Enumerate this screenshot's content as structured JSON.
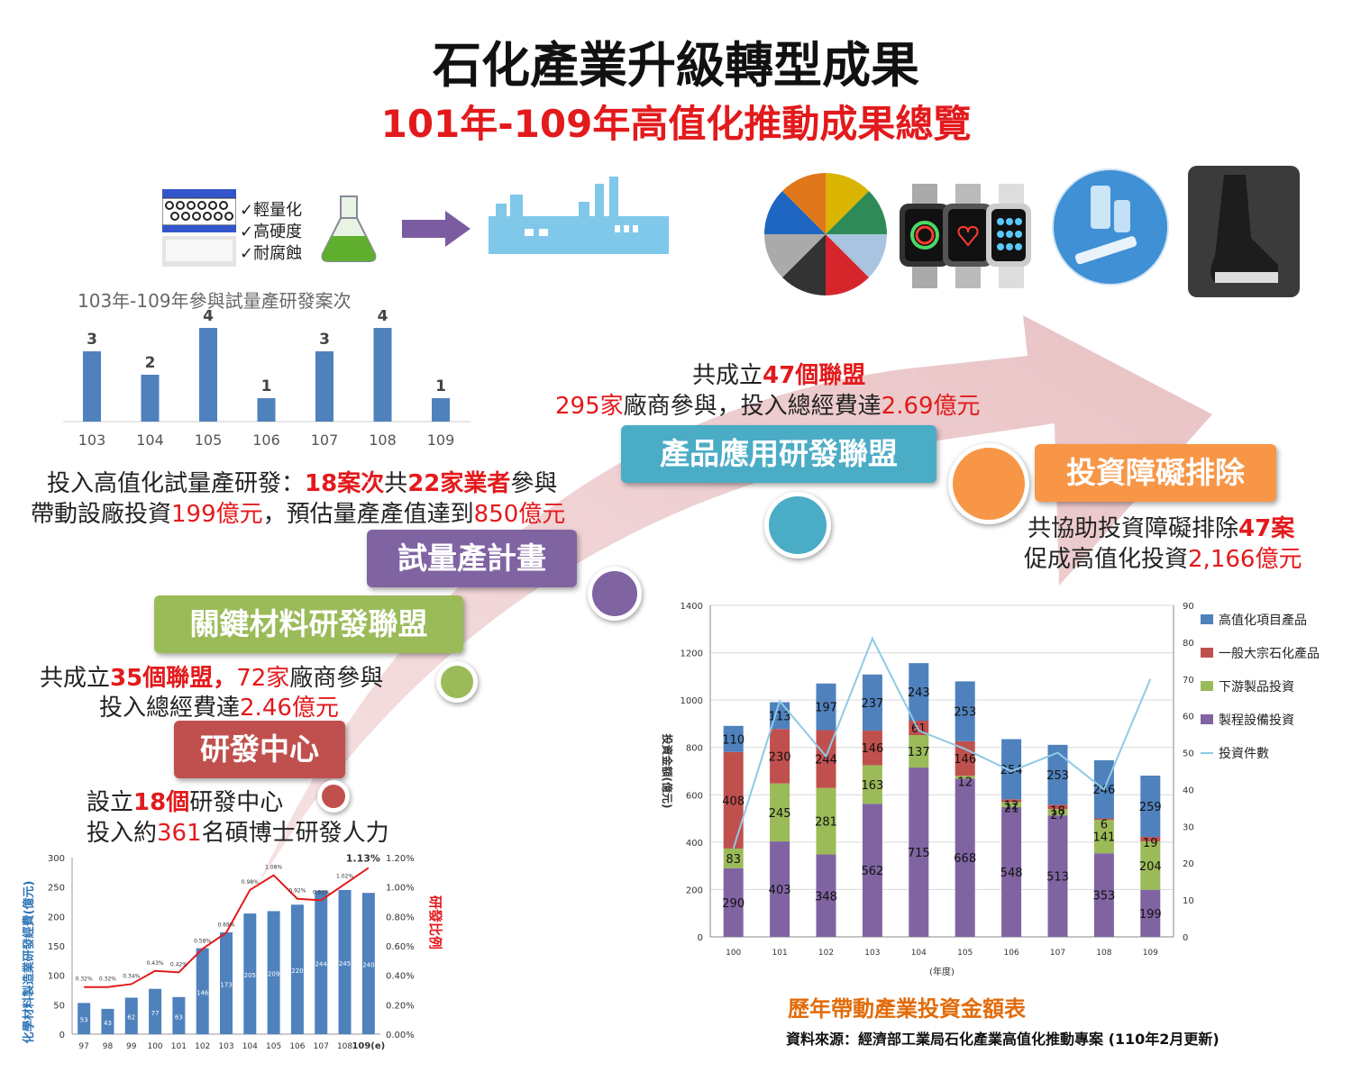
{
  "header": {
    "title": "石化產業升級轉型成果",
    "subtitle": "101年-109年高值化推動成果總覽"
  },
  "material_props": [
    "✓輕量化",
    "✓高硬度",
    "✓耐腐蝕"
  ],
  "stages": {
    "rd_center": "研發中心",
    "key_material": "關鍵材料研發聯盟",
    "pilot": "試量產計畫",
    "product_app": "產品應用研發聯盟",
    "invest_barrier": "投資障礙排除"
  },
  "texts": {
    "rd_center_l1_a": "設立",
    "rd_center_l1_b": "18個",
    "rd_center_l1_c": "研發中心",
    "rd_center_l2_a": "投入約",
    "rd_center_l2_b": "361",
    "rd_center_l2_c": "名碩博士研發人力",
    "key_l1_a": "共成立",
    "key_l1_b": "35個聯盟，",
    "key_l1_c": "72家",
    "key_l1_d": "廠商參與",
    "key_l2_a": "投入總經費達",
    "key_l2_b": "2.46億元",
    "pilot_l1_a": "投入高值化試量產研發：",
    "pilot_l1_b": "18案次",
    "pilot_l1_c": "共",
    "pilot_l1_d": "22家業者",
    "pilot_l1_e": "參與",
    "pilot_l2_a": "帶動設廠投資",
    "pilot_l2_b": "199億元",
    "pilot_l2_c": "，預估量產產值達到",
    "pilot_l2_d": "850億元",
    "prod_l1_a": "共成立",
    "prod_l1_b": "47個聯盟",
    "prod_l2_a": "295家",
    "prod_l2_b": "廠商參與，投入總經費達",
    "prod_l2_c": "2.69億元",
    "inv_l1_a": "共協助投資障礙排除",
    "inv_l1_b": "47案",
    "inv_l2_a": "促成高值化投資",
    "inv_l2_b": "2,166億元"
  },
  "colors": {
    "rd_center": "#c0504d",
    "key_material": "#9bbb59",
    "pilot": "#8064a2",
    "product_app": "#4bacc6",
    "invest_barrier": "#f79646",
    "bar_blue": "#4f81bd",
    "arrow": "#efc9cc"
  },
  "footer": {
    "caption": "歷年帶動產業投資金額表",
    "source": "資料來源：經濟部工業局石化產業高值化推動專案 (110年2月更新)"
  },
  "chart_data": [
    {
      "type": "bar",
      "title": "103年-109年參與試量產研發案次",
      "categories": [
        "103",
        "104",
        "105",
        "106",
        "107",
        "108",
        "109"
      ],
      "values": [
        3,
        2,
        4,
        1,
        3,
        4,
        1
      ],
      "ylim": [
        0,
        4
      ]
    },
    {
      "type": "bar",
      "xlabel": "",
      "ylabel": "化學材料製造業研發經費(億元)",
      "y2label": "研發比例",
      "categories": [
        "97",
        "98",
        "99",
        "100",
        "101",
        "102",
        "103",
        "104",
        "105",
        "106",
        "107",
        "108",
        "109(e)"
      ],
      "series": [
        {
          "values": [
            53,
            43,
            62,
            77,
            63,
            146,
            173,
            205,
            209,
            220,
            244,
            245,
            240
          ],
          "kind": "bar"
        },
        {
          "values": [
            0.32,
            0.32,
            0.34,
            0.43,
            0.42,
            0.58,
            0.69,
            0.98,
            1.08,
            0.92,
            0.91,
            1.02,
            1.13
          ],
          "kind": "line",
          "axis": "right",
          "unit": "%"
        }
      ],
      "ylim": [
        0,
        300
      ],
      "y2lim": [
        0,
        1.2
      ],
      "yticks": [
        "0",
        "50",
        "100",
        "150",
        "200",
        "250",
        "300"
      ],
      "y2ticks": [
        "0.00%",
        "0.20%",
        "0.40%",
        "0.60%",
        "0.80%",
        "1.00%",
        "1.20%"
      ]
    },
    {
      "type": "bar",
      "stacked": true,
      "xlabel": "(年度)",
      "ylabel": "投資金額(億元)",
      "categories": [
        "100",
        "101",
        "102",
        "103",
        "104",
        "105",
        "106",
        "107",
        "108",
        "109"
      ],
      "series": [
        {
          "name": "製程設備投資",
          "color": "#8064a2",
          "values": [
            290,
            403,
            348,
            562,
            715,
            668,
            548,
            513,
            353,
            199
          ]
        },
        {
          "name": "下游製品投資",
          "color": "#9bbb59",
          "values": [
            83,
            245,
            281,
            163,
            137,
            12,
            21,
            27,
            141,
            204
          ]
        },
        {
          "name": "一般大宗石化產品",
          "color": "#c0504d",
          "values": [
            408,
            230,
            244,
            146,
            61,
            146,
            12,
            18,
            6,
            19
          ]
        },
        {
          "name": "高值化項目產品",
          "color": "#4f81bd",
          "values": [
            110,
            113,
            197,
            237,
            243,
            253,
            254,
            253,
            246,
            259
          ]
        },
        {
          "name": "投資件數",
          "color": "#8ecae6",
          "kind": "line",
          "axis": "right",
          "values": [
            24,
            64,
            49,
            81,
            56,
            51,
            45,
            50,
            40,
            70
          ]
        }
      ],
      "legend_order": [
        "高值化項目產品",
        "一般大宗石化產品",
        "下游製品投資",
        "製程設備投資",
        "投資件數"
      ],
      "ylim": [
        0,
        1400
      ],
      "y2lim": [
        0,
        90
      ],
      "yticks": [
        "0",
        "200",
        "400",
        "600",
        "800",
        "1000",
        "1200",
        "1400"
      ],
      "y2ticks": [
        "0",
        "10",
        "20",
        "30",
        "40",
        "50",
        "60",
        "70",
        "80",
        "90"
      ],
      "legend": "right"
    }
  ]
}
